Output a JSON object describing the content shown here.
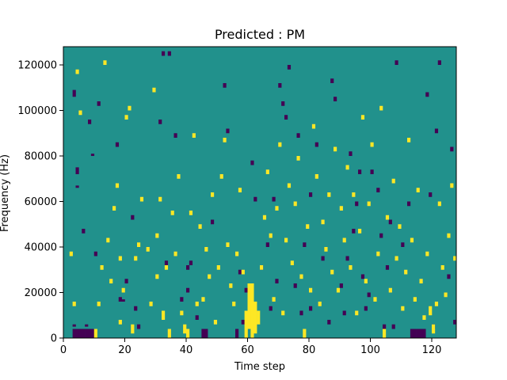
{
  "chart_data": {
    "type": "heatmap",
    "title": "Predicted : PM",
    "xlabel": "Time step",
    "ylabel": "Frequency (Hz)",
    "xlim": [
      0,
      128
    ],
    "ylim": [
      0,
      128000
    ],
    "x_ticks": [
      0,
      20,
      40,
      60,
      80,
      100,
      120
    ],
    "y_ticks": [
      0,
      20000,
      40000,
      60000,
      80000,
      100000,
      120000
    ],
    "x_tick_labels": [
      "0",
      "20",
      "40",
      "60",
      "80",
      "100",
      "120"
    ],
    "y_tick_labels": [
      "0",
      "20000",
      "40000",
      "60000",
      "80000",
      "100000",
      "120000"
    ],
    "grid": false,
    "legend": false,
    "n_time_steps": 128,
    "n_freq_bins": 128,
    "freq_bin_hz": 1000,
    "colors": {
      "background": "#21918c",
      "low": "#440154",
      "high": "#fde725"
    },
    "background_value": 0,
    "low_cells": [
      [
        3,
        0,
        4
      ],
      [
        3,
        5,
        1
      ],
      [
        4,
        0,
        4
      ],
      [
        5,
        0,
        4
      ],
      [
        6,
        0,
        4
      ],
      [
        7,
        0,
        4
      ],
      [
        8,
        0,
        4
      ],
      [
        9,
        0,
        4
      ],
      [
        7,
        5,
        1
      ],
      [
        3,
        106,
        3
      ],
      [
        4,
        72,
        3
      ],
      [
        4,
        66,
        1
      ],
      [
        6,
        46,
        2
      ],
      [
        8,
        94,
        2
      ],
      [
        9,
        80,
        1
      ],
      [
        10,
        36,
        2
      ],
      [
        11,
        102,
        2
      ],
      [
        17,
        84,
        2
      ],
      [
        18,
        16,
        2
      ],
      [
        19,
        16,
        1
      ],
      [
        20,
        24,
        2
      ],
      [
        22,
        52,
        2
      ],
      [
        23,
        12,
        2
      ],
      [
        24,
        4,
        2
      ],
      [
        31,
        94,
        2
      ],
      [
        32,
        124,
        2
      ],
      [
        33,
        32,
        2
      ],
      [
        34,
        124,
        2
      ],
      [
        36,
        88,
        2
      ],
      [
        38,
        16,
        2
      ],
      [
        40,
        30,
        2
      ],
      [
        40,
        20,
        2
      ],
      [
        41,
        32,
        2
      ],
      [
        43,
        8,
        2
      ],
      [
        45,
        0,
        4
      ],
      [
        46,
        0,
        4
      ],
      [
        48,
        50,
        2
      ],
      [
        52,
        110,
        2
      ],
      [
        53,
        90,
        2
      ],
      [
        56,
        0,
        4
      ],
      [
        57,
        28,
        2
      ],
      [
        58,
        6,
        2
      ],
      [
        59,
        20,
        2
      ],
      [
        61,
        76,
        2
      ],
      [
        62,
        60,
        2
      ],
      [
        64,
        30,
        2
      ],
      [
        66,
        40,
        2
      ],
      [
        67,
        12,
        2
      ],
      [
        68,
        60,
        2
      ],
      [
        69,
        24,
        2
      ],
      [
        70,
        110,
        2
      ],
      [
        71,
        102,
        2
      ],
      [
        72,
        96,
        2
      ],
      [
        73,
        118,
        2
      ],
      [
        75,
        22,
        2
      ],
      [
        76,
        88,
        2
      ],
      [
        77,
        10,
        2
      ],
      [
        78,
        40,
        2
      ],
      [
        80,
        12,
        2
      ],
      [
        80,
        62,
        2
      ],
      [
        82,
        84,
        2
      ],
      [
        84,
        34,
        2
      ],
      [
        86,
        6,
        2
      ],
      [
        87,
        112,
        2
      ],
      [
        88,
        104,
        2
      ],
      [
        90,
        22,
        2
      ],
      [
        91,
        10,
        2
      ],
      [
        92,
        34,
        2
      ],
      [
        93,
        80,
        2
      ],
      [
        94,
        46,
        2
      ],
      [
        95,
        58,
        2
      ],
      [
        96,
        72,
        2
      ],
      [
        97,
        26,
        2
      ],
      [
        98,
        12,
        2
      ],
      [
        99,
        18,
        2
      ],
      [
        100,
        72,
        2
      ],
      [
        102,
        64,
        2
      ],
      [
        103,
        44,
        2
      ],
      [
        104,
        4,
        2
      ],
      [
        105,
        30,
        2
      ],
      [
        106,
        50,
        2
      ],
      [
        107,
        4,
        2
      ],
      [
        108,
        120,
        2
      ],
      [
        110,
        40,
        2
      ],
      [
        112,
        58,
        2
      ],
      [
        113,
        0,
        4
      ],
      [
        114,
        0,
        4
      ],
      [
        115,
        0,
        4
      ],
      [
        116,
        0,
        4
      ],
      [
        117,
        0,
        4
      ],
      [
        118,
        106,
        2
      ],
      [
        119,
        62,
        2
      ],
      [
        120,
        4,
        2
      ],
      [
        121,
        90,
        2
      ],
      [
        122,
        120,
        2
      ],
      [
        125,
        26,
        2
      ],
      [
        126,
        82,
        2
      ],
      [
        127,
        6,
        2
      ]
    ],
    "high_cells": [
      [
        2,
        36,
        2
      ],
      [
        3,
        14,
        2
      ],
      [
        4,
        116,
        2
      ],
      [
        5,
        98,
        2
      ],
      [
        10,
        0,
        4
      ],
      [
        11,
        14,
        2
      ],
      [
        12,
        30,
        2
      ],
      [
        13,
        120,
        2
      ],
      [
        14,
        42,
        2
      ],
      [
        15,
        24,
        2
      ],
      [
        16,
        56,
        2
      ],
      [
        17,
        66,
        2
      ],
      [
        18,
        6,
        2
      ],
      [
        18,
        34,
        2
      ],
      [
        19,
        20,
        2
      ],
      [
        20,
        96,
        2
      ],
      [
        21,
        100,
        2
      ],
      [
        22,
        2,
        4
      ],
      [
        23,
        34,
        2
      ],
      [
        24,
        40,
        2
      ],
      [
        25,
        60,
        2
      ],
      [
        27,
        38,
        2
      ],
      [
        28,
        14,
        2
      ],
      [
        29,
        108,
        2
      ],
      [
        30,
        26,
        2
      ],
      [
        30,
        44,
        2
      ],
      [
        31,
        60,
        2
      ],
      [
        32,
        8,
        4
      ],
      [
        33,
        30,
        2
      ],
      [
        34,
        0,
        4
      ],
      [
        35,
        54,
        2
      ],
      [
        36,
        36,
        2
      ],
      [
        37,
        70,
        2
      ],
      [
        38,
        10,
        2
      ],
      [
        39,
        2,
        4
      ],
      [
        40,
        0,
        4
      ],
      [
        41,
        54,
        2
      ],
      [
        42,
        88,
        2
      ],
      [
        43,
        14,
        2
      ],
      [
        44,
        48,
        2
      ],
      [
        45,
        16,
        2
      ],
      [
        46,
        38,
        2
      ],
      [
        47,
        26,
        2
      ],
      [
        48,
        62,
        2
      ],
      [
        49,
        6,
        2
      ],
      [
        50,
        30,
        2
      ],
      [
        51,
        70,
        2
      ],
      [
        52,
        86,
        2
      ],
      [
        53,
        40,
        2
      ],
      [
        54,
        22,
        2
      ],
      [
        55,
        14,
        2
      ],
      [
        56,
        36,
        2
      ],
      [
        57,
        64,
        2
      ],
      [
        58,
        28,
        2
      ],
      [
        59,
        0,
        12
      ],
      [
        60,
        4,
        20
      ],
      [
        61,
        0,
        24
      ],
      [
        62,
        2,
        14
      ],
      [
        63,
        6,
        6
      ],
      [
        64,
        30,
        2
      ],
      [
        65,
        52,
        2
      ],
      [
        66,
        72,
        2
      ],
      [
        67,
        44,
        2
      ],
      [
        68,
        16,
        2
      ],
      [
        69,
        56,
        2
      ],
      [
        70,
        84,
        2
      ],
      [
        71,
        10,
        2
      ],
      [
        72,
        42,
        2
      ],
      [
        73,
        66,
        2
      ],
      [
        74,
        32,
        2
      ],
      [
        75,
        58,
        2
      ],
      [
        76,
        78,
        2
      ],
      [
        77,
        26,
        2
      ],
      [
        78,
        0,
        4
      ],
      [
        79,
        48,
        2
      ],
      [
        80,
        20,
        2
      ],
      [
        81,
        92,
        2
      ],
      [
        82,
        70,
        2
      ],
      [
        83,
        14,
        2
      ],
      [
        84,
        50,
        2
      ],
      [
        85,
        38,
        2
      ],
      [
        86,
        62,
        2
      ],
      [
        87,
        28,
        2
      ],
      [
        88,
        82,
        2
      ],
      [
        89,
        20,
        2
      ],
      [
        90,
        56,
        2
      ],
      [
        91,
        42,
        2
      ],
      [
        92,
        74,
        2
      ],
      [
        93,
        30,
        2
      ],
      [
        94,
        62,
        2
      ],
      [
        95,
        10,
        2
      ],
      [
        96,
        46,
        2
      ],
      [
        97,
        96,
        2
      ],
      [
        98,
        24,
        2
      ],
      [
        99,
        58,
        2
      ],
      [
        100,
        84,
        2
      ],
      [
        101,
        16,
        2
      ],
      [
        102,
        36,
        2
      ],
      [
        103,
        100,
        2
      ],
      [
        104,
        0,
        4
      ],
      [
        105,
        52,
        2
      ],
      [
        106,
        20,
        2
      ],
      [
        107,
        68,
        2
      ],
      [
        108,
        34,
        2
      ],
      [
        109,
        48,
        2
      ],
      [
        110,
        12,
        2
      ],
      [
        111,
        28,
        2
      ],
      [
        112,
        86,
        2
      ],
      [
        113,
        42,
        2
      ],
      [
        114,
        16,
        2
      ],
      [
        115,
        64,
        2
      ],
      [
        116,
        24,
        2
      ],
      [
        117,
        8,
        2
      ],
      [
        118,
        36,
        2
      ],
      [
        119,
        10,
        4
      ],
      [
        120,
        2,
        4
      ],
      [
        121,
        14,
        2
      ],
      [
        122,
        58,
        2
      ],
      [
        123,
        30,
        2
      ],
      [
        124,
        18,
        2
      ],
      [
        125,
        44,
        2
      ],
      [
        126,
        66,
        2
      ],
      [
        127,
        34,
        2
      ]
    ]
  }
}
